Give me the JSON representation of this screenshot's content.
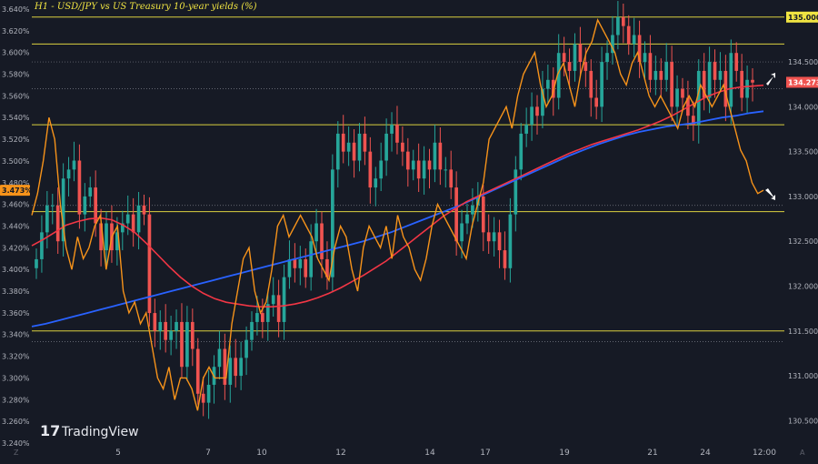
{
  "chart_data": {
    "type": "candlestick",
    "title": "H1 - USD/JPY vs US Treasury 10-year yields (%)",
    "watermark": "TradingView",
    "left_axis": {
      "ticks": [
        "3.240%",
        "3.260%",
        "3.280%",
        "3.300%",
        "3.320%",
        "3.340%",
        "3.360%",
        "3.380%",
        "3.400%",
        "3.420%",
        "3.440%",
        "3.460%",
        "3.480%",
        "3.500%",
        "3.520%",
        "3.540%",
        "3.560%",
        "3.580%",
        "3.600%",
        "3.620%",
        "3.640%"
      ],
      "range": [
        3.24,
        3.645
      ],
      "current_label": "3.473%"
    },
    "right_axis": {
      "ticks": [
        "130.500",
        "131.000",
        "131.500",
        "132.000",
        "132.500",
        "133.000",
        "133.500",
        "134.000",
        "134.500",
        "135.000"
      ],
      "range": [
        130.25,
        135.15
      ],
      "current_label": "134.273"
    },
    "x_axis": {
      "ticks": [
        "5",
        "7",
        "10",
        "12",
        "14",
        "17",
        "19",
        "21",
        "24",
        "12:00"
      ]
    },
    "horizontal_lines": [
      135.0,
      134.7,
      134.5,
      134.2,
      133.8,
      132.9,
      132.83,
      131.5,
      131.38
    ],
    "series": {
      "usdjpy_close": [
        132.3,
        132.6,
        132.9,
        132.9,
        132.5,
        133.2,
        133.3,
        133.4,
        132.8,
        133.0,
        133.1,
        132.7,
        132.4,
        132.7,
        132.4,
        132.6,
        132.7,
        132.8,
        132.6,
        132.9,
        132.8,
        131.7,
        131.5,
        131.6,
        131.4,
        131.5,
        131.6,
        131.1,
        131.6,
        131.3,
        130.8,
        130.7,
        130.9,
        131.1,
        131.3,
        130.9,
        131.2,
        131.0,
        131.2,
        131.4,
        131.6,
        131.7,
        131.6,
        131.8,
        131.9,
        131.6,
        132.1,
        132.3,
        132.2,
        132.3,
        132.1,
        132.5,
        132.7,
        132.3,
        132.1,
        133.3,
        133.7,
        133.5,
        133.6,
        133.4,
        133.7,
        133.5,
        133.1,
        133.2,
        133.4,
        133.7,
        133.8,
        133.6,
        133.5,
        133.3,
        133.4,
        133.2,
        133.4,
        133.3,
        133.6,
        133.3,
        133.3,
        133.1,
        132.5,
        132.7,
        132.8,
        132.9,
        133.0,
        132.6,
        132.5,
        132.6,
        132.4,
        132.2,
        132.8,
        133.3,
        133.7,
        133.8,
        134.0,
        133.9,
        134.2,
        134.3,
        134.1,
        134.6,
        134.5,
        134.4,
        134.7,
        134.5,
        134.4,
        134.1,
        134.0,
        134.5,
        134.6,
        134.8,
        135.0,
        134.9,
        134.7,
        134.8,
        134.5,
        134.6,
        134.3,
        134.4,
        134.3,
        134.5,
        134.0,
        134.2,
        134.1,
        133.9,
        133.8,
        134.4,
        134.1,
        134.5,
        134.3,
        134.4,
        134.0,
        134.6,
        134.4,
        134.1,
        134.3,
        134.27
      ],
      "us10y": [
        3.45,
        3.47,
        3.5,
        3.54,
        3.52,
        3.46,
        3.42,
        3.4,
        3.43,
        3.41,
        3.42,
        3.44,
        3.45,
        3.4,
        3.43,
        3.44,
        3.38,
        3.36,
        3.37,
        3.35,
        3.36,
        3.33,
        3.3,
        3.29,
        3.31,
        3.28,
        3.3,
        3.3,
        3.29,
        3.27,
        3.3,
        3.31,
        3.3,
        3.3,
        3.3,
        3.35,
        3.38,
        3.41,
        3.42,
        3.38,
        3.36,
        3.37,
        3.4,
        3.44,
        3.45,
        3.43,
        3.44,
        3.45,
        3.44,
        3.43,
        3.41,
        3.4,
        3.39,
        3.42,
        3.44,
        3.43,
        3.4,
        3.38,
        3.42,
        3.44,
        3.43,
        3.42,
        3.44,
        3.41,
        3.45,
        3.43,
        3.42,
        3.4,
        3.39,
        3.41,
        3.44,
        3.46,
        3.45,
        3.44,
        3.43,
        3.42,
        3.41,
        3.44,
        3.46,
        3.48,
        3.52,
        3.53,
        3.54,
        3.55,
        3.53,
        3.56,
        3.58,
        3.59,
        3.6,
        3.57,
        3.55,
        3.56,
        3.58,
        3.59,
        3.57,
        3.55,
        3.58,
        3.6,
        3.61,
        3.63,
        3.62,
        3.61,
        3.6,
        3.58,
        3.57,
        3.59,
        3.6,
        3.58,
        3.56,
        3.55,
        3.56,
        3.55,
        3.54,
        3.53,
        3.55,
        3.56,
        3.55,
        3.57,
        3.56,
        3.55,
        3.56,
        3.57,
        3.55,
        3.53,
        3.51,
        3.5,
        3.48,
        3.47,
        3.473
      ],
      "ma_short": [
        132.45,
        132.52,
        132.6,
        132.68,
        132.72,
        132.75,
        132.76,
        132.74,
        132.68,
        132.6,
        132.48,
        132.35,
        132.22,
        132.1,
        132.0,
        131.92,
        131.86,
        131.82,
        131.8,
        131.78,
        131.77,
        131.77,
        131.78,
        131.8,
        131.83,
        131.87,
        131.92,
        131.98,
        132.05,
        132.12,
        132.2,
        132.28,
        132.38,
        132.48,
        132.58,
        132.68,
        132.78,
        132.86,
        132.94,
        133.0,
        133.06,
        133.12,
        133.18,
        133.24,
        133.3,
        133.36,
        133.42,
        133.48,
        133.53,
        133.58,
        133.62,
        133.66,
        133.7,
        133.74,
        133.79,
        133.84,
        133.9,
        133.97,
        134.04,
        134.11,
        134.16,
        134.2,
        134.22,
        134.23,
        134.24
      ],
      "ma_long": [
        131.55,
        131.58,
        131.62,
        131.66,
        131.7,
        131.74,
        131.78,
        131.82,
        131.86,
        131.9,
        131.94,
        131.98,
        132.02,
        132.06,
        132.1,
        132.14,
        132.18,
        132.22,
        132.26,
        132.3,
        132.34,
        132.38,
        132.42,
        132.46,
        132.5,
        132.55,
        132.6,
        132.66,
        132.72,
        132.78,
        132.84,
        132.9,
        132.97,
        133.04,
        133.11,
        133.18,
        133.25,
        133.32,
        133.39,
        133.46,
        133.52,
        133.58,
        133.63,
        133.68,
        133.72,
        133.75,
        133.78,
        133.8,
        133.82,
        133.85,
        133.88,
        133.9,
        133.93,
        133.95
      ]
    },
    "colors": {
      "background": "#161a25",
      "candle_up": "#26a69a",
      "candle_down": "#ef5350",
      "yield_line": "#f7931a",
      "ma_short": "#f23645",
      "ma_long": "#2962ff",
      "level_line": "#f0e442",
      "dotted_line": "#9598a1",
      "text": "#b2b5be"
    }
  }
}
